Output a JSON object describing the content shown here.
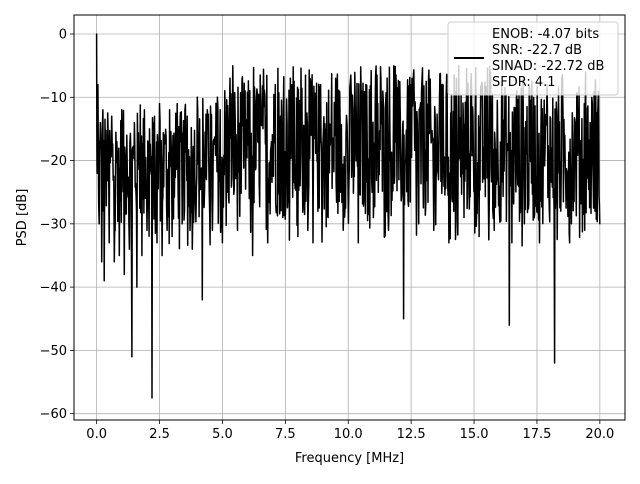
{
  "chart_data": {
    "type": "line",
    "title": "",
    "xlabel": "Frequency [MHz]",
    "ylabel": "PSD [dB]",
    "xlim": [
      -0.9,
      21.0
    ],
    "ylim": [
      -61,
      3
    ],
    "x_ticks": [
      0.0,
      2.5,
      5.0,
      7.5,
      10.0,
      12.5,
      15.0,
      17.5,
      20.0
    ],
    "x_tick_labels": [
      "0.0",
      "2.5",
      "5.0",
      "7.5",
      "10.0",
      "12.5",
      "15.0",
      "17.5",
      "20.0"
    ],
    "y_ticks": [
      0,
      -10,
      -20,
      -30,
      -40,
      -50,
      -60
    ],
    "y_tick_labels": [
      "0",
      "−10",
      "−20",
      "−30",
      "−40",
      "−50",
      "−60"
    ],
    "grid": true,
    "legend_position": "top-right",
    "series": [
      {
        "name": "ENOB: -4.07 bits\nSNR: -22.7 dB\nSINAD: -22.72 dB\nSFDR: 4.1",
        "color": "#000000",
        "x": [
          0.0,
          0.02,
          0.05,
          0.1,
          0.15,
          0.2,
          0.25,
          0.3,
          0.4,
          0.5,
          0.6,
          0.7,
          0.8,
          0.9,
          1.0,
          1.1,
          1.2,
          1.3,
          1.4,
          1.5,
          1.6,
          1.7,
          1.8,
          1.9,
          2.0,
          2.1,
          2.2,
          2.3,
          2.4,
          2.5,
          2.6,
          2.7,
          2.8,
          2.9,
          3.0,
          3.2,
          3.4,
          3.6,
          3.8,
          4.0,
          4.2,
          4.4,
          4.6,
          4.8,
          5.0,
          5.3,
          5.6,
          5.9,
          6.2,
          6.5,
          6.8,
          7.1,
          7.4,
          7.7,
          8.0,
          8.3,
          8.6,
          8.9,
          9.2,
          9.5,
          9.8,
          10.1,
          10.4,
          10.7,
          11.0,
          11.3,
          11.6,
          11.9,
          12.2,
          12.5,
          12.8,
          13.1,
          13.4,
          13.7,
          14.0,
          14.3,
          14.6,
          14.9,
          15.2,
          15.5,
          15.8,
          16.1,
          16.4,
          16.7,
          17.0,
          17.3,
          17.6,
          17.9,
          18.2,
          18.5,
          18.8,
          19.1,
          19.4,
          19.7,
          20.0
        ],
        "y": [
          0.0,
          -22.0,
          -8.0,
          -30.0,
          -14.0,
          -36.0,
          -12.0,
          -39.0,
          -18.0,
          -33.0,
          -13.0,
          -36.0,
          -17.0,
          -35.0,
          -12.0,
          -38.0,
          -16.0,
          -34.0,
          -51.0,
          -14.0,
          -40.0,
          -18.0,
          -35.0,
          -12.0,
          -31.0,
          -15.0,
          -57.5,
          -13.0,
          -33.0,
          -11.0,
          -35.0,
          -16.0,
          -31.0,
          -12.0,
          -32.0,
          -11.0,
          -30.0,
          -13.0,
          -34.0,
          -10.0,
          -42.0,
          -12.0,
          -31.0,
          -10.0,
          -33.0,
          -7.0,
          -31.0,
          -9.0,
          -35.0,
          -6.5,
          -33.0,
          -8.0,
          -29.0,
          -7.0,
          -32.0,
          -6.5,
          -33.0,
          -8.0,
          -29.0,
          -7.0,
          -31.0,
          -6.5,
          -33.0,
          -8.0,
          -29.0,
          -7.0,
          -31.0,
          -6.5,
          -45.0,
          -8.0,
          -30.0,
          -7.5,
          -31.0,
          -8.0,
          -33.0,
          -7.0,
          -29.0,
          -8.5,
          -32.0,
          -9.0,
          -31.0,
          -8.0,
          -46.0,
          -9.0,
          -30.0,
          -7.5,
          -33.0,
          -8.0,
          -52.0,
          -9.0,
          -33.0,
          -9.5,
          -31.0,
          -11.0,
          -30.0
        ]
      }
    ]
  }
}
